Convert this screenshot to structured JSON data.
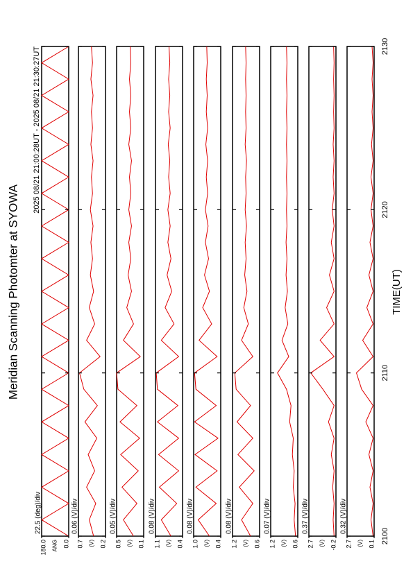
{
  "header": {
    "title": "Meridian Scanning Photomter at SYOWA",
    "subtitle": "2025 08/21 21:00:28UT - 2025 08/21 21:30:27UT"
  },
  "chart_data": [
    {
      "type": "line",
      "scale_label": "22.5 (deg)/div",
      "unit_label": "ANG",
      "ylim": [
        0,
        180
      ],
      "yticks": [
        {
          "value": 0,
          "label": "0.0"
        },
        {
          "value": 180,
          "label": "180.0"
        }
      ],
      "xlim": [
        0,
        30
      ],
      "xticks": [
        0,
        10,
        20,
        30
      ],
      "x": [
        0,
        1,
        2,
        3,
        4,
        5,
        6,
        7,
        8,
        9,
        10,
        11,
        12,
        13,
        14,
        15,
        16,
        17,
        18,
        19,
        20,
        21,
        22,
        23,
        24,
        25,
        26,
        27,
        28,
        29,
        30
      ],
      "series": [
        {
          "color": "#e00000",
          "values": [
            0,
            180,
            0,
            180,
            0,
            180,
            0,
            180,
            0,
            180,
            0,
            180,
            0,
            180,
            0,
            180,
            0,
            180,
            0,
            180,
            0,
            180,
            0,
            180,
            0,
            180,
            0,
            180,
            0,
            180,
            0
          ]
        }
      ]
    },
    {
      "type": "line",
      "scale_label": "0.06 (V)/div",
      "unit_label": "(V)",
      "ylim": [
        0.2,
        0.7
      ],
      "yticks": [
        0.2,
        0.7
      ],
      "xlim": [
        0,
        30
      ],
      "xticks": [
        0,
        10,
        20,
        30
      ],
      "x": [
        0,
        1,
        2,
        3,
        4,
        5,
        6,
        7,
        8,
        9,
        10,
        11,
        12,
        13,
        14,
        15,
        16,
        17,
        18,
        19,
        20,
        21,
        22,
        23,
        24,
        25,
        26,
        27,
        28,
        29,
        30
      ],
      "series": [
        {
          "color": "#e00000",
          "values": [
            0.42,
            0.5,
            0.38,
            0.55,
            0.4,
            0.52,
            0.36,
            0.58,
            0.35,
            0.6,
            0.68,
            0.3,
            0.55,
            0.4,
            0.5,
            0.42,
            0.48,
            0.44,
            0.47,
            0.43,
            0.48,
            0.44,
            0.46,
            0.43,
            0.47,
            0.44,
            0.46,
            0.43,
            0.47,
            0.44,
            0.46
          ]
        }
      ]
    },
    {
      "type": "line",
      "scale_label": "0.05 (V)/div",
      "unit_label": "(V)",
      "ylim": [
        0.1,
        0.5
      ],
      "yticks": [
        0.1,
        0.5
      ],
      "xlim": [
        0,
        30
      ],
      "xticks": [
        0,
        10,
        20,
        30
      ],
      "x": [
        0,
        1,
        2,
        3,
        4,
        5,
        6,
        7,
        8,
        9,
        10,
        11,
        12,
        13,
        14,
        15,
        16,
        17,
        18,
        19,
        20,
        21,
        22,
        23,
        24,
        25,
        26,
        27,
        28,
        29,
        30
      ],
      "series": [
        {
          "color": "#e00000",
          "values": [
            0.25,
            0.4,
            0.2,
            0.42,
            0.18,
            0.44,
            0.16,
            0.45,
            0.2,
            0.48,
            0.5,
            0.15,
            0.4,
            0.25,
            0.35,
            0.28,
            0.33,
            0.29,
            0.32,
            0.28,
            0.32,
            0.29,
            0.31,
            0.28,
            0.32,
            0.29,
            0.31,
            0.29,
            0.31,
            0.29,
            0.3
          ]
        }
      ]
    },
    {
      "type": "line",
      "scale_label": "0.08 (V)/div",
      "unit_label": "(V)",
      "ylim": [
        0.4,
        1.1
      ],
      "yticks": [
        0.4,
        1.1
      ],
      "xlim": [
        0,
        30
      ],
      "xticks": [
        0,
        10,
        20,
        30
      ],
      "x": [
        0,
        1,
        2,
        3,
        4,
        5,
        6,
        7,
        8,
        9,
        10,
        11,
        12,
        13,
        14,
        15,
        16,
        17,
        18,
        19,
        20,
        21,
        22,
        23,
        24,
        25,
        26,
        27,
        28,
        29,
        30
      ],
      "series": [
        {
          "color": "#e00000",
          "values": [
            0.7,
            0.95,
            0.55,
            1.0,
            0.5,
            1.02,
            0.5,
            1.05,
            0.52,
            1.05,
            1.08,
            0.5,
            0.95,
            0.62,
            0.85,
            0.68,
            0.8,
            0.7,
            0.78,
            0.72,
            0.78,
            0.72,
            0.76,
            0.73,
            0.77,
            0.72,
            0.76,
            0.73,
            0.76,
            0.73,
            0.75
          ]
        }
      ]
    },
    {
      "type": "line",
      "scale_label": "0.08 (V)/div",
      "unit_label": "(V)",
      "ylim": [
        0.4,
        1.0
      ],
      "yticks": [
        0.4,
        {
          "value": 1.0,
          "label": "1.0"
        }
      ],
      "xlim": [
        0,
        30
      ],
      "xticks": [
        0,
        10,
        20,
        30
      ],
      "x": [
        0,
        1,
        2,
        3,
        4,
        5,
        6,
        7,
        8,
        9,
        10,
        11,
        12,
        13,
        14,
        15,
        16,
        17,
        18,
        19,
        20,
        21,
        22,
        23,
        24,
        25,
        26,
        27,
        28,
        29,
        30
      ],
      "series": [
        {
          "color": "#e00000",
          "values": [
            0.65,
            0.9,
            0.5,
            0.95,
            0.48,
            0.97,
            0.46,
            0.98,
            0.5,
            0.95,
            0.98,
            0.48,
            0.88,
            0.6,
            0.8,
            0.65,
            0.76,
            0.67,
            0.74,
            0.68,
            0.74,
            0.69,
            0.72,
            0.69,
            0.73,
            0.69,
            0.72,
            0.7,
            0.72,
            0.7,
            0.71
          ]
        }
      ]
    },
    {
      "type": "line",
      "scale_label": "0.08 (V)/div",
      "unit_label": "(V)",
      "ylim": [
        0.6,
        1.2
      ],
      "yticks": [
        0.6,
        1.2
      ],
      "xlim": [
        0,
        30
      ],
      "xticks": [
        0,
        10,
        20,
        30
      ],
      "x": [
        0,
        1,
        2,
        3,
        4,
        5,
        6,
        7,
        8,
        9,
        10,
        11,
        12,
        13,
        14,
        15,
        16,
        17,
        18,
        19,
        20,
        21,
        22,
        23,
        24,
        25,
        26,
        27,
        28,
        29,
        30
      ],
      "series": [
        {
          "color": "#e00000",
          "values": [
            0.8,
            1.0,
            0.75,
            1.05,
            0.72,
            1.08,
            0.75,
            1.1,
            0.8,
            1.12,
            1.15,
            0.75,
            1.0,
            0.85,
            0.95,
            0.88,
            0.93,
            0.9,
            0.92,
            0.89,
            0.92,
            0.9,
            0.91,
            0.89,
            0.92,
            0.9,
            0.91,
            0.9,
            0.91,
            0.9,
            0.91
          ]
        }
      ]
    },
    {
      "type": "line",
      "scale_label": "0.07 (V)/div",
      "unit_label": "(V)",
      "ylim": [
        0.6,
        1.2
      ],
      "yticks": [
        0.6,
        1.2
      ],
      "xlim": [
        0,
        30
      ],
      "xticks": [
        0,
        10,
        20,
        30
      ],
      "x": [
        0,
        1,
        2,
        3,
        4,
        5,
        6,
        7,
        8,
        9,
        10,
        11,
        12,
        13,
        14,
        15,
        16,
        17,
        18,
        19,
        20,
        21,
        22,
        23,
        24,
        25,
        26,
        27,
        28,
        29,
        30
      ],
      "series": [
        {
          "color": "#e00000",
          "values": [
            0.65,
            0.68,
            0.66,
            0.7,
            0.68,
            0.72,
            0.7,
            0.78,
            0.75,
            0.85,
            1.05,
            0.8,
            0.95,
            0.82,
            0.88,
            0.83,
            0.86,
            0.84,
            0.86,
            0.84,
            0.85,
            0.84,
            0.85,
            0.84,
            0.85,
            0.84,
            0.85,
            0.84,
            0.85,
            0.84,
            0.85
          ]
        }
      ]
    },
    {
      "type": "line",
      "scale_label": "0.37 (V)/div",
      "unit_label": "(V)",
      "ylim": [
        -0.2,
        2.7
      ],
      "yticks": [
        -0.2,
        2.7
      ],
      "xlim": [
        0,
        30
      ],
      "xticks": [
        0,
        10,
        20,
        30
      ],
      "x": [
        0,
        1,
        2,
        3,
        4,
        5,
        6,
        7,
        8,
        9,
        10,
        11,
        12,
        13,
        14,
        15,
        16,
        17,
        18,
        19,
        20,
        21,
        22,
        23,
        24,
        25,
        26,
        27,
        28,
        29,
        30
      ],
      "series": [
        {
          "color": "#e00000",
          "values": [
            0,
            0.1,
            0,
            0.15,
            0,
            0.3,
            0,
            0.6,
            0,
            1.2,
            2.5,
            0,
            1.5,
            0,
            0.8,
            0,
            0.5,
            0,
            0.3,
            0,
            0.2,
            0,
            0.1,
            0,
            0.1,
            0,
            0.05,
            0,
            0.05,
            0,
            0.05
          ]
        }
      ]
    },
    {
      "type": "line",
      "scale_label": "0.32 (V)/div",
      "unit_label": "(V)",
      "ylim": [
        0.1,
        2.7
      ],
      "yticks": [
        0.1,
        2.7
      ],
      "xlim": [
        0,
        30
      ],
      "xticks": [
        {
          "value": 0,
          "label": "2100"
        },
        {
          "value": 10,
          "label": "2110"
        },
        {
          "value": 20,
          "label": "2120"
        },
        {
          "value": 30,
          "label": "2130"
        }
      ],
      "xlabel": "TIME(UT)",
      "x": [
        0,
        1,
        2,
        3,
        4,
        5,
        6,
        7,
        8,
        9,
        10,
        11,
        12,
        13,
        14,
        15,
        16,
        17,
        18,
        19,
        20,
        21,
        22,
        23,
        24,
        25,
        26,
        27,
        28,
        29,
        30
      ],
      "series": [
        {
          "color": "#e00000",
          "values": [
            0.2,
            0.4,
            0.2,
            0.5,
            0.2,
            0.6,
            0.2,
            0.9,
            0.2,
            1.3,
            1.8,
            0.2,
            1.2,
            0.2,
            0.8,
            0.2,
            0.6,
            0.2,
            0.5,
            0.2,
            0.4,
            0.2,
            0.4,
            0.2,
            0.35,
            0.2,
            0.3,
            0.2,
            0.3,
            0.2,
            0.3
          ]
        }
      ]
    }
  ]
}
